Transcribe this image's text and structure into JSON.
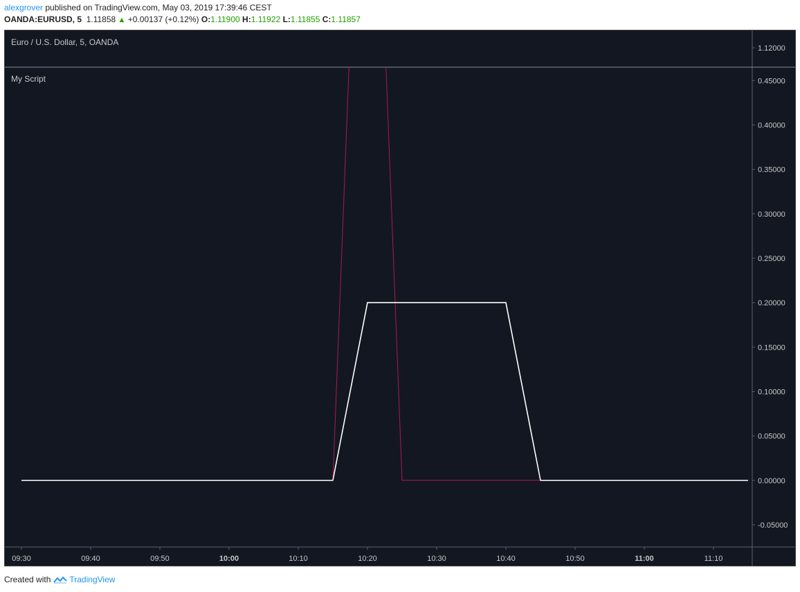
{
  "header": {
    "user": "alexgrover",
    "published_text": "published on TradingView.com, May 03, 2019 17:39:46 CEST",
    "symbol": "OANDA:EURUSD, 5",
    "last": "1.11858",
    "change": "+0.00137 (+0.12%)",
    "open_label": "O:",
    "open": "1.11900",
    "high_label": "H:",
    "high": "1.11922",
    "low_label": "L:",
    "low": "1.11855",
    "close_label": "C:",
    "close": "1.11857"
  },
  "main_pane": {
    "title": "Euro / U.S. Dollar, 5, OANDA",
    "price_tick": "1.12000"
  },
  "indicator_pane": {
    "title": "My Script"
  },
  "footer": {
    "created_with": "Created with",
    "brand": "TradingView"
  },
  "colors": {
    "background": "#131722",
    "white_series": "#ffffff",
    "red_series": "#b0184e",
    "axis_text": "#c8c8c8"
  },
  "chart_data": {
    "type": "line",
    "x": [
      "09:30",
      "09:35",
      "09:40",
      "09:45",
      "09:50",
      "09:55",
      "10:00",
      "10:05",
      "10:10",
      "10:15",
      "10:20",
      "10:25",
      "10:30",
      "10:35",
      "10:40",
      "10:45",
      "10:50",
      "10:55",
      "11:00",
      "11:05",
      "11:10",
      "11:15"
    ],
    "x_tick_labels": [
      "09:30",
      "09:40",
      "09:50",
      "10:00",
      "10:10",
      "10:20",
      "10:30",
      "10:40",
      "10:50",
      "11:00",
      "11:10"
    ],
    "x_tick_bold": [
      "10:00",
      "11:00"
    ],
    "y_tick_labels": [
      "0.45000",
      "0.40000",
      "0.35000",
      "0.30000",
      "0.25000",
      "0.20000",
      "0.15000",
      "0.10000",
      "0.05000",
      "0.00000",
      "-0.05000"
    ],
    "ylim": [
      -0.075,
      0.465
    ],
    "series": [
      {
        "color": "#ffffff",
        "values": [
          0,
          0,
          0,
          0,
          0,
          0,
          0,
          0,
          0,
          0,
          0.2,
          0.2,
          0.2,
          0.2,
          0.2,
          0,
          0,
          0,
          0,
          0,
          0,
          0
        ]
      },
      {
        "color": "#b0184e",
        "values": [
          0,
          0,
          0,
          0,
          0,
          0,
          0,
          0,
          0,
          0,
          1.0,
          0,
          0,
          0,
          0,
          0,
          null,
          null,
          null,
          null,
          null,
          null
        ]
      }
    ]
  }
}
